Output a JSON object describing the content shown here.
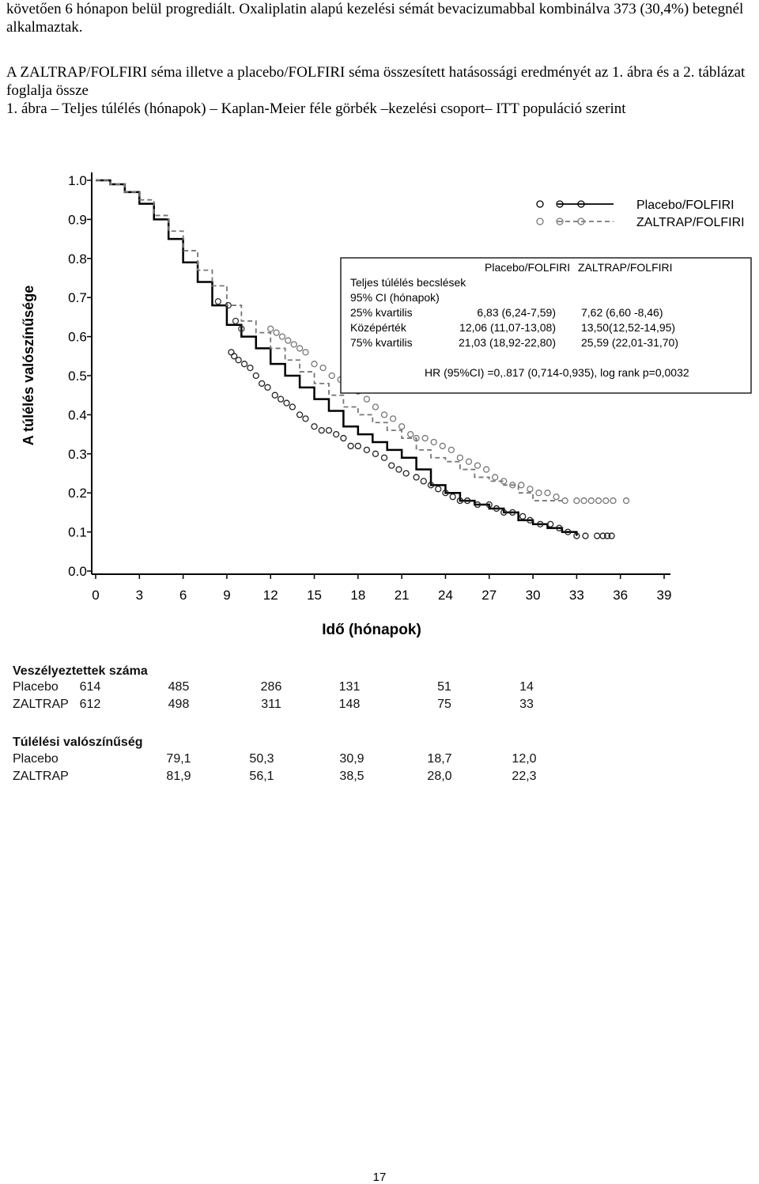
{
  "doc": {
    "para1": "követően 6 hónapon belül progrediált. Oxaliplatin alapú kezelési sémát bevacizumabbal kombinálva 373 (30,4%) betegnél alkalmaztak.",
    "para2": "A ZALTRAP/FOLFIRI séma illetve a placebo/FOLFIRI séma összesített hatásossági eredményét az 1. ábra és a 2. táblázat foglalja össze",
    "caption": "1. ábra – Teljes túlélés (hónapok) – Kaplan-Meier féle görbék –kezelési csoport– ITT populáció szerint",
    "page_number": "17"
  },
  "chart_data": {
    "type": "line",
    "title": "",
    "xlabel": "Idő (hónapok)",
    "ylabel": "A túlélés valószínűsége",
    "xlim": [
      0,
      39
    ],
    "ylim": [
      0,
      1.0
    ],
    "x_ticks": [
      "0",
      "3",
      "6",
      "9",
      "12",
      "15",
      "18",
      "21",
      "24",
      "27",
      "30",
      "33",
      "36",
      "39"
    ],
    "y_ticks": [
      "0.0",
      "0.1",
      "0.2",
      "0.3",
      "0.4",
      "0.5",
      "0.6",
      "0.7",
      "0.8",
      "0.9",
      "1.0"
    ],
    "legend": {
      "position": "top-right",
      "entries": [
        {
          "name": "Placebo/FOLFIRI",
          "style": "solid"
        },
        {
          "name": "ZALTRAP/FOLFIRI",
          "style": "dashed"
        }
      ]
    },
    "series": [
      {
        "name": "Placebo/FOLFIRI",
        "style": "solid",
        "color": "#000000",
        "x": [
          0,
          1,
          2,
          3,
          4,
          5,
          6,
          7,
          8,
          9,
          10,
          11,
          12,
          13,
          14,
          15,
          16,
          17,
          18,
          19,
          20,
          21,
          22,
          23,
          24,
          25,
          26,
          27,
          28,
          29,
          30,
          31,
          32,
          33
        ],
        "y": [
          1.0,
          0.99,
          0.97,
          0.94,
          0.9,
          0.85,
          0.79,
          0.74,
          0.68,
          0.63,
          0.6,
          0.57,
          0.53,
          0.5,
          0.47,
          0.44,
          0.41,
          0.37,
          0.35,
          0.33,
          0.31,
          0.29,
          0.26,
          0.22,
          0.2,
          0.18,
          0.17,
          0.16,
          0.15,
          0.13,
          0.12,
          0.11,
          0.1,
          0.09
        ]
      },
      {
        "name": "ZALTRAP/FOLFIRI",
        "style": "dashed",
        "color": "#777777",
        "x": [
          0,
          1,
          2,
          3,
          4,
          5,
          6,
          7,
          8,
          9,
          10,
          11,
          12,
          13,
          14,
          15,
          16,
          17,
          18,
          19,
          20,
          21,
          22,
          23,
          24,
          25,
          26,
          27,
          28,
          29,
          30,
          31,
          32
        ],
        "y": [
          1.0,
          0.99,
          0.97,
          0.95,
          0.91,
          0.87,
          0.82,
          0.77,
          0.73,
          0.68,
          0.64,
          0.61,
          0.57,
          0.54,
          0.51,
          0.48,
          0.45,
          0.42,
          0.4,
          0.38,
          0.36,
          0.34,
          0.31,
          0.29,
          0.28,
          0.26,
          0.24,
          0.23,
          0.22,
          0.2,
          0.18,
          0.18,
          0.18
        ]
      }
    ],
    "censored_placebo": [
      [
        9.3,
        0.56
      ],
      [
        9.5,
        0.55
      ],
      [
        9.8,
        0.54
      ],
      [
        10.2,
        0.53
      ],
      [
        10.6,
        0.52
      ],
      [
        11.0,
        0.5
      ],
      [
        11.4,
        0.48
      ],
      [
        11.8,
        0.47
      ],
      [
        12.3,
        0.45
      ],
      [
        12.7,
        0.44
      ],
      [
        13.1,
        0.43
      ],
      [
        13.5,
        0.42
      ],
      [
        14.0,
        0.4
      ],
      [
        14.4,
        0.39
      ],
      [
        15.0,
        0.37
      ],
      [
        15.5,
        0.36
      ],
      [
        16.0,
        0.36
      ],
      [
        16.5,
        0.35
      ],
      [
        17.0,
        0.34
      ],
      [
        17.5,
        0.32
      ],
      [
        18.0,
        0.32
      ],
      [
        18.6,
        0.31
      ],
      [
        19.2,
        0.3
      ],
      [
        19.8,
        0.29
      ],
      [
        20.3,
        0.27
      ],
      [
        20.8,
        0.26
      ],
      [
        21.3,
        0.25
      ],
      [
        22.0,
        0.24
      ],
      [
        22.5,
        0.23
      ],
      [
        23.0,
        0.22
      ],
      [
        23.5,
        0.21
      ],
      [
        24.0,
        0.2
      ],
      [
        24.5,
        0.19
      ],
      [
        25.0,
        0.18
      ],
      [
        25.5,
        0.18
      ],
      [
        26.2,
        0.17
      ],
      [
        27.0,
        0.17
      ],
      [
        27.5,
        0.16
      ],
      [
        28.0,
        0.15
      ],
      [
        28.6,
        0.15
      ],
      [
        29.3,
        0.14
      ],
      [
        29.8,
        0.13
      ],
      [
        30.5,
        0.12
      ],
      [
        31.2,
        0.12
      ],
      [
        31.8,
        0.11
      ],
      [
        32.4,
        0.1
      ],
      [
        33.0,
        0.09
      ],
      [
        33.6,
        0.09
      ],
      [
        34.4,
        0.09
      ],
      [
        34.8,
        0.09
      ],
      [
        35.1,
        0.09
      ],
      [
        35.4,
        0.09
      ]
    ],
    "censored_zaltrap": [
      [
        12.0,
        0.62
      ],
      [
        12.4,
        0.61
      ],
      [
        12.8,
        0.6
      ],
      [
        13.2,
        0.59
      ],
      [
        13.6,
        0.58
      ],
      [
        14.0,
        0.57
      ],
      [
        14.4,
        0.56
      ],
      [
        15.0,
        0.53
      ],
      [
        15.6,
        0.52
      ],
      [
        16.2,
        0.5
      ],
      [
        16.8,
        0.49
      ],
      [
        17.4,
        0.47
      ],
      [
        18.0,
        0.46
      ],
      [
        18.6,
        0.44
      ],
      [
        19.2,
        0.42
      ],
      [
        19.8,
        0.4
      ],
      [
        20.4,
        0.39
      ],
      [
        21.0,
        0.37
      ],
      [
        21.6,
        0.35
      ],
      [
        22.0,
        0.34
      ],
      [
        22.6,
        0.34
      ],
      [
        23.2,
        0.33
      ],
      [
        23.8,
        0.32
      ],
      [
        24.4,
        0.31
      ],
      [
        25.0,
        0.29
      ],
      [
        25.6,
        0.28
      ],
      [
        26.2,
        0.27
      ],
      [
        26.8,
        0.26
      ],
      [
        27.4,
        0.24
      ],
      [
        28.0,
        0.23
      ],
      [
        28.6,
        0.22
      ],
      [
        29.2,
        0.22
      ],
      [
        29.8,
        0.21
      ],
      [
        30.4,
        0.2
      ],
      [
        31.0,
        0.2
      ],
      [
        31.6,
        0.19
      ],
      [
        32.2,
        0.18
      ],
      [
        33.0,
        0.18
      ],
      [
        33.5,
        0.18
      ],
      [
        34.0,
        0.18
      ],
      [
        34.5,
        0.18
      ],
      [
        35.0,
        0.18
      ],
      [
        35.5,
        0.18
      ],
      [
        36.4,
        0.18
      ]
    ],
    "censored_early": [
      [
        8.4,
        0.69
      ],
      [
        9.1,
        0.68
      ],
      [
        9.6,
        0.64
      ],
      [
        10.0,
        0.62
      ]
    ],
    "stats_box": {
      "col_headers": [
        "Placebo/FOLFIRI",
        "ZALTRAP/FOLFIRI"
      ],
      "rows": [
        {
          "label": "Teljes túlélés becslések",
          "placebo": "",
          "zaltrap": ""
        },
        {
          "label": "95% CI (hónapok)",
          "placebo": "",
          "zaltrap": ""
        },
        {
          "label": "25% kvartilis",
          "placebo": "6,83 (6,24-7,59)",
          "zaltrap": "7,62 (6,60 -8,46)"
        },
        {
          "label": "Középérték",
          "placebo": "12,06 (11,07-13,08)",
          "zaltrap": "13,50(12,52-14,95)"
        },
        {
          "label": "75% kvartilis",
          "placebo": "21,03 (18,92-22,80)",
          "zaltrap": "25,59 (22,01-31,70)"
        }
      ],
      "hr_line": "HR (95%CI) =0,.817 (0,714-0,935), log rank p=0,0032"
    }
  },
  "risk_table": {
    "title": "Veszélyeztettek száma",
    "rows": [
      {
        "label": "Placebo",
        "values": [
          "614",
          "485",
          "286",
          "131",
          "51",
          "14"
        ]
      },
      {
        "label": "ZALTRAP",
        "values": [
          "612",
          "498",
          "311",
          "148",
          "75",
          "33"
        ]
      }
    ]
  },
  "survival_table": {
    "title": "Túlélési valószínűség",
    "rows": [
      {
        "label": "Placebo",
        "values": [
          "79,1",
          "50,3",
          "30,9",
          "18,7",
          "12,0"
        ]
      },
      {
        "label": "ZALTRAP",
        "values": [
          "81,9",
          "56,1",
          "38,5",
          "28,0",
          "22,3"
        ]
      }
    ]
  }
}
